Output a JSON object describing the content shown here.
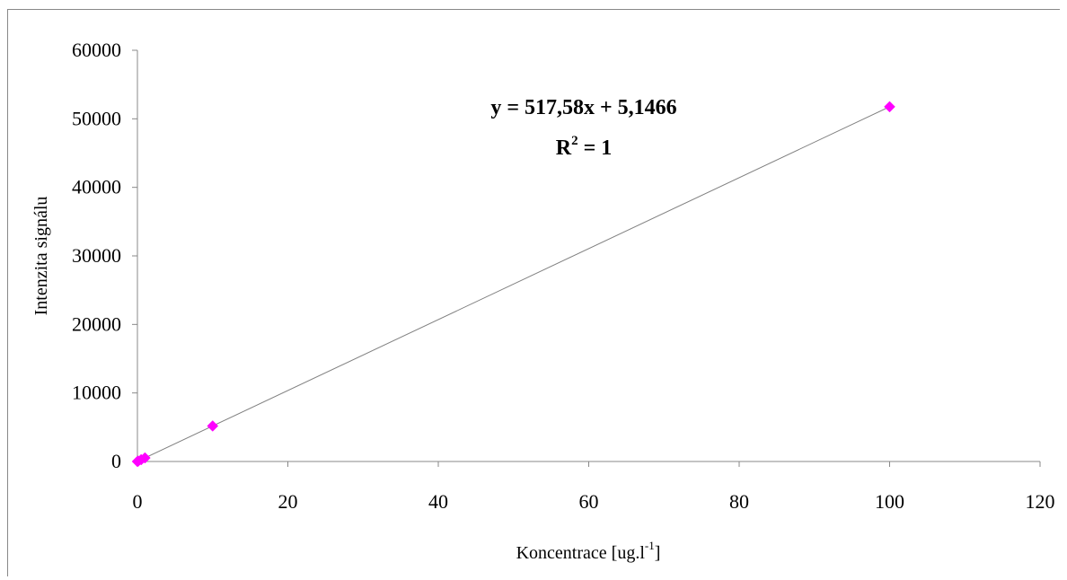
{
  "chart_data": {
    "type": "scatter",
    "title": "",
    "xlabel": "Koncentrace [ug.l",
    "xlabel_sup": "-1",
    "xlabel_end": "]",
    "ylabel": "Intenzita signálu",
    "xlim": [
      0,
      120
    ],
    "ylim": [
      0,
      60000
    ],
    "x_ticks": [
      0,
      20,
      40,
      60,
      80,
      100,
      120
    ],
    "y_ticks": [
      0,
      10000,
      20000,
      30000,
      40000,
      50000,
      60000
    ],
    "grid": false,
    "series": [
      {
        "marker": "diamond",
        "color": "#ff00ff",
        "x": [
          0,
          0.1,
          0.5,
          1,
          10,
          100
        ],
        "y": [
          5,
          57,
          264,
          523,
          5181,
          51763
        ]
      }
    ],
    "trendline": {
      "type": "linear",
      "slope": 517.58,
      "intercept": 5.1466,
      "color": "#808080",
      "equation_label": "y = 517,58x + 5,1466",
      "r2_prefix": "R",
      "r2_sup": "2",
      "r2_suffix": " = 1"
    }
  }
}
